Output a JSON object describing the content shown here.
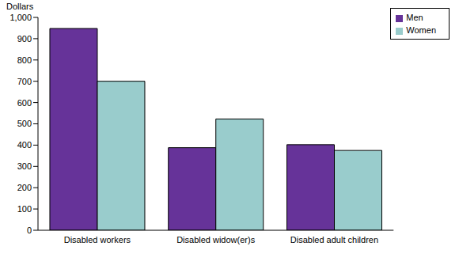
{
  "chart_data": {
    "type": "bar",
    "y_label": "Dollars",
    "categories": [
      "Disabled workers",
      "Disabled widow(er)s",
      "Disabled adult children"
    ],
    "series": [
      {
        "name": "Men",
        "color": "#663399",
        "values": [
          948,
          388,
          402
        ]
      },
      {
        "name": "Women",
        "color": "#99cccc",
        "values": [
          700,
          523,
          375
        ]
      }
    ],
    "ylim": [
      0,
      1000
    ],
    "yticks": [
      0,
      100,
      200,
      300,
      400,
      500,
      600,
      700,
      800,
      900,
      {
        "value": 1000,
        "label": "1,000"
      }
    ],
    "grid": false,
    "legend": "top-right"
  }
}
